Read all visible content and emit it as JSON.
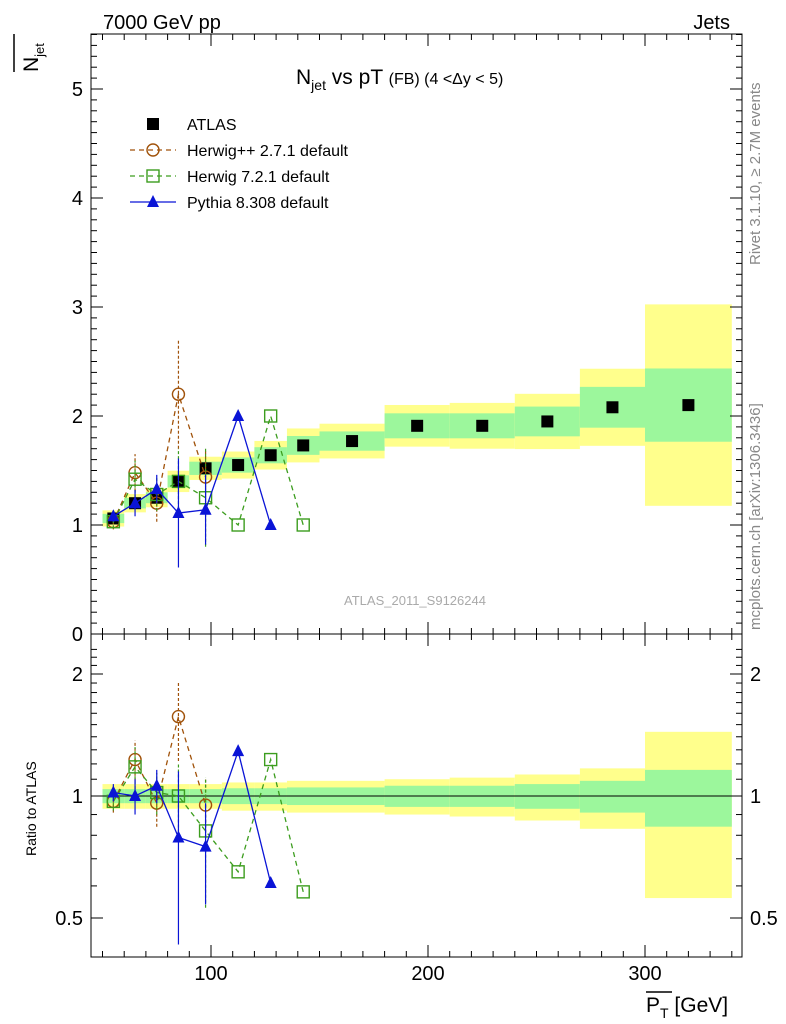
{
  "header": {
    "left_label": "7000 GeV pp",
    "right_label": "Jets",
    "side_label_top": "Rivet 3.1.10, ≥ 2.7M events",
    "side_label_bottom": "mcplots.cern.ch [arXiv:1306.3436]",
    "watermark": "ATLAS_2011_S9126244"
  },
  "chart_data": [
    {
      "panel": "main",
      "type": "line",
      "title": "N_jet vs pT (FB) (4 < Δy < 5)",
      "ylabel": "N_jet (mean)",
      "xlim": [
        42,
        350
      ],
      "ylim": [
        0,
        5.5
      ],
      "yticks": [
        0,
        1,
        2,
        3,
        4,
        5
      ],
      "xticks": [
        100,
        200,
        300
      ],
      "legend_position": "top-left",
      "series": [
        {
          "name": "ATLAS",
          "style": "data",
          "color": "#000000",
          "marker": "filled-square",
          "x": [
            55,
            65,
            75,
            85,
            97.5,
            112.5,
            127.5,
            142.5,
            165,
            195,
            225,
            255,
            285,
            320
          ],
          "y": [
            1.06,
            1.2,
            1.25,
            1.4,
            1.52,
            1.55,
            1.64,
            1.73,
            1.77,
            1.91,
            1.91,
            1.95,
            2.08,
            2.1
          ],
          "ratio_band_x": [
            50,
            60,
            70,
            80,
            90,
            105,
            120,
            135,
            150,
            180,
            210,
            240,
            270,
            300,
            340
          ],
          "ratio_band_inner": [
            0.04,
            0.04,
            0.04,
            0.04,
            0.04,
            0.045,
            0.045,
            0.05,
            0.05,
            0.06,
            0.06,
            0.07,
            0.09,
            0.16
          ],
          "ratio_band_outer": [
            0.07,
            0.07,
            0.07,
            0.07,
            0.07,
            0.08,
            0.08,
            0.09,
            0.09,
            0.1,
            0.11,
            0.13,
            0.17,
            0.44
          ]
        },
        {
          "name": "Herwig++ 2.7.1 default",
          "style": "dashed",
          "color": "#a0520a",
          "marker": "open-circle",
          "x": [
            55,
            65,
            75,
            85,
            97.5
          ],
          "y": [
            1.03,
            1.48,
            1.2,
            2.2,
            1.44
          ],
          "yerr": [
            0.07,
            0.17,
            0.17,
            0.5,
            0.25
          ]
        },
        {
          "name": "Herwig 7.2.1 default",
          "style": "dashed",
          "color": "#3c9d1e",
          "marker": "open-square",
          "x": [
            55,
            65,
            75,
            85,
            97.5,
            112.5,
            127.5,
            142.5
          ],
          "y": [
            1.03,
            1.42,
            1.28,
            1.4,
            1.25,
            1.0,
            2.0,
            1.0
          ],
          "yerr": [
            0.06,
            0.17,
            0.15,
            0.3,
            0.45,
            0,
            0,
            0
          ]
        },
        {
          "name": "Pythia 8.308 default",
          "style": "solid",
          "color": "#0a14d6",
          "marker": "filled-triangle",
          "x": [
            55,
            65,
            75,
            85,
            97.5,
            112.5,
            127.5
          ],
          "y": [
            1.08,
            1.2,
            1.33,
            1.11,
            1.14,
            2.0,
            1.0
          ],
          "yerr": [
            0.05,
            0.12,
            0.13,
            0.5,
            0.32,
            0,
            0
          ]
        }
      ]
    },
    {
      "panel": "ratio",
      "type": "line",
      "ylabel": "Ratio to ATLAS",
      "xlabel": "P_T (mean) [GeV]",
      "ylim": [
        0.4,
        2.35
      ],
      "yticks": [
        0.5,
        1,
        2
      ],
      "xticks": [
        100,
        200,
        300
      ],
      "series": [
        {
          "name": "Herwig++ 2.7.1 default",
          "x": [
            55,
            65,
            75,
            85,
            97.5
          ],
          "y": [
            0.97,
            1.23,
            0.96,
            1.57,
            0.95
          ],
          "yerr": [
            0.06,
            0.14,
            0.12,
            0.35,
            0.16
          ]
        },
        {
          "name": "Herwig 7.2.1 default",
          "x": [
            55,
            65,
            75,
            85,
            97.5,
            112.5,
            127.5,
            142.5
          ],
          "y": [
            0.97,
            1.18,
            1.02,
            1.0,
            0.82,
            0.65,
            1.23,
            0.58
          ],
          "yerr": [
            0.05,
            0.14,
            0.12,
            0.21,
            0.29,
            0,
            0,
            0
          ]
        },
        {
          "name": "Pythia 8.308 default",
          "x": [
            55,
            65,
            75,
            85,
            97.5,
            112.5,
            127.5
          ],
          "y": [
            1.02,
            1.0,
            1.06,
            0.79,
            0.75,
            1.29,
            0.61
          ],
          "yerr": [
            0.05,
            0.1,
            0.1,
            0.36,
            0.21,
            0,
            0
          ]
        }
      ]
    }
  ]
}
